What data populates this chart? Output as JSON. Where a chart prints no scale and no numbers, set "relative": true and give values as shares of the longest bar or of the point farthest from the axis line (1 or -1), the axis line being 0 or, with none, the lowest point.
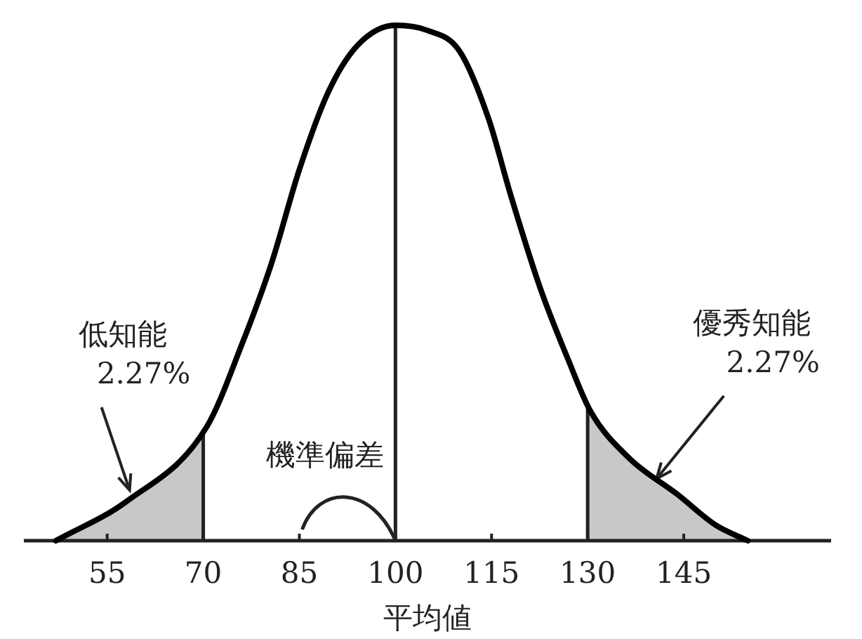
{
  "chart_data": {
    "type": "line",
    "relative": true,
    "xlabel": "平均値",
    "color": "#000000",
    "x": [
      47,
      58,
      70.5,
      76,
      80.7,
      85,
      89.5,
      94,
      100,
      105,
      110,
      114.5,
      118,
      122.6,
      127,
      130.5,
      136.5,
      144,
      150,
      155
    ],
    "values": [
      0,
      0.076,
      0.22,
      0.38,
      0.54,
      0.72,
      0.87,
      0.96,
      1,
      0.99,
      0.95,
      0.82,
      0.67,
      0.49,
      0.35,
      0.25,
      0.16,
      0.09,
      0.03,
      0
    ],
    "xlim": [
      42,
      168
    ],
    "xticks": [
      55,
      70,
      85,
      100,
      115,
      130,
      145
    ],
    "ref_lines": [
      {
        "axis": "x",
        "value": 100
      },
      {
        "axis": "x",
        "value": 70
      },
      {
        "axis": "x",
        "value": 130
      }
    ],
    "bands": [
      {
        "axis": "x",
        "from": 47,
        "to": 70,
        "label": "低知能 2.27%",
        "color": "#c8c8c8"
      },
      {
        "axis": "x",
        "from": 130,
        "to": 155,
        "label": "優秀知能 2.27%",
        "color": "#c8c8c8"
      }
    ],
    "annotations": [
      "機準偏差"
    ]
  }
}
